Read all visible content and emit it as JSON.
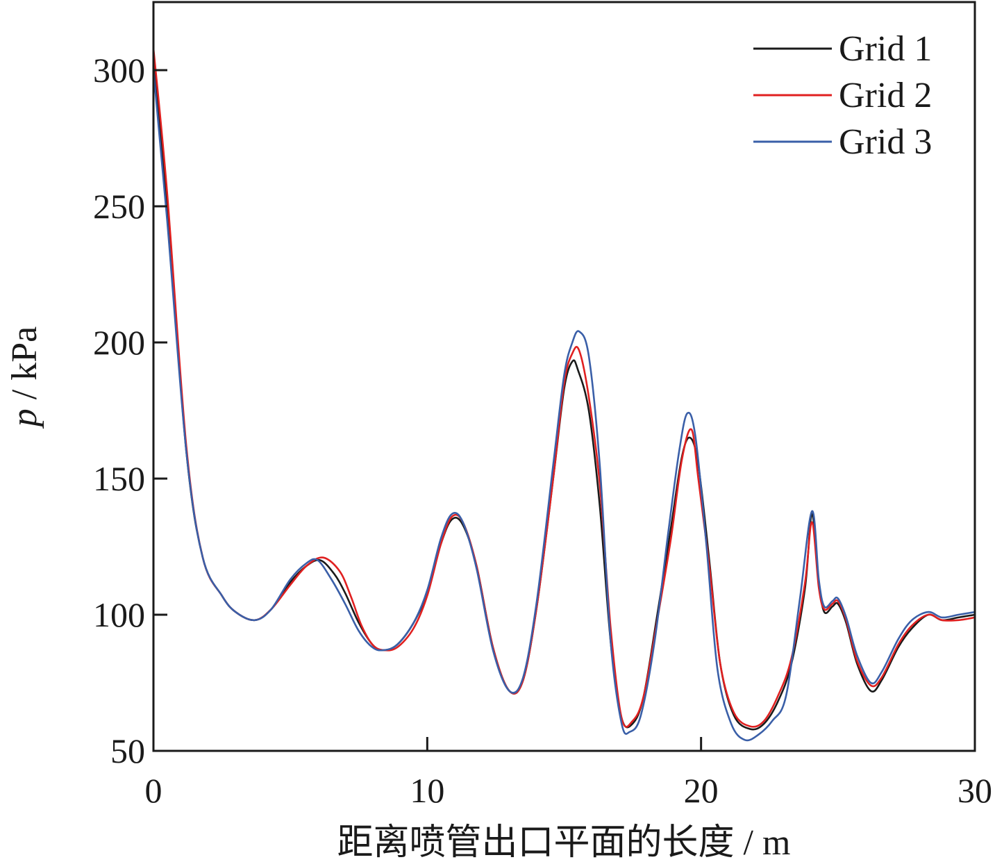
{
  "chart_data": {
    "type": "line",
    "xlabel": "距离喷管出口平面的长度 / m",
    "ylabel_var": "p",
    "ylabel_unit": " / kPa",
    "xlim": [
      0,
      30
    ],
    "ylim": [
      50,
      325
    ],
    "xticks": [
      0,
      10,
      20,
      30
    ],
    "yticks": [
      50,
      100,
      150,
      200,
      250,
      300
    ],
    "grid": false,
    "legend_position": "top-right",
    "series": [
      {
        "name": "Grid 1",
        "color": "#1a1a1a",
        "x": [
          0,
          0.5,
          1.2,
          1.8,
          2.5,
          3.0,
          3.7,
          4.3,
          5.0,
          5.6,
          6.1,
          6.6,
          7.0,
          7.5,
          8.0,
          8.4,
          8.9,
          9.5,
          10.0,
          10.5,
          10.9,
          11.3,
          11.8,
          12.4,
          13.0,
          13.5,
          14.0,
          14.6,
          15.0,
          15.3,
          15.5,
          15.9,
          16.3,
          16.7,
          17.1,
          17.5,
          17.9,
          18.4,
          18.9,
          19.3,
          19.6,
          19.9,
          20.3,
          20.7,
          21.2,
          21.8,
          22.3,
          22.8,
          23.3,
          23.8,
          24.05,
          24.3,
          24.5,
          24.8,
          25.0,
          25.3,
          25.7,
          26.2,
          26.6,
          27.2,
          27.7,
          28.3,
          28.8,
          29.4,
          30.0
        ],
        "y": [
          305,
          250,
          160,
          121,
          107,
          101,
          98,
          102,
          112,
          118,
          120,
          115,
          108,
          97,
          89,
          87,
          89,
          97,
          108,
          126,
          135,
          133,
          118,
          88,
          72,
          76,
          103,
          150,
          183,
          193,
          190,
          175,
          140,
          90,
          62,
          60,
          70,
          100,
          132,
          158,
          165,
          155,
          120,
          82,
          63,
          58,
          60,
          68,
          82,
          110,
          137,
          112,
          101,
          103,
          104,
          97,
          82,
          72,
          76,
          88,
          95,
          100,
          98,
          99,
          100
        ]
      },
      {
        "name": "Grid 2",
        "color": "#e02020",
        "x": [
          0,
          0.5,
          1.2,
          1.8,
          2.5,
          3.0,
          3.7,
          4.3,
          5.0,
          5.6,
          6.2,
          6.8,
          7.2,
          7.6,
          8.0,
          8.4,
          8.9,
          9.5,
          10.0,
          10.5,
          10.9,
          11.3,
          11.8,
          12.4,
          13.0,
          13.5,
          14.0,
          14.6,
          15.0,
          15.3,
          15.55,
          15.9,
          16.3,
          16.7,
          17.1,
          17.5,
          17.9,
          18.4,
          18.9,
          19.3,
          19.65,
          19.9,
          20.3,
          20.7,
          21.2,
          21.8,
          22.3,
          22.8,
          23.3,
          23.8,
          24.05,
          24.3,
          24.5,
          24.8,
          25.0,
          25.3,
          25.7,
          26.2,
          26.6,
          27.2,
          27.7,
          28.3,
          28.8,
          29.4,
          30.0
        ],
        "y": [
          308,
          255,
          162,
          121,
          107,
          101,
          98,
          102,
          111,
          118,
          121,
          116,
          107,
          96,
          89,
          87,
          88,
          95,
          107,
          126,
          136,
          134,
          118,
          88,
          72,
          76,
          103,
          150,
          185,
          196,
          197,
          180,
          148,
          95,
          62,
          61,
          70,
          98,
          128,
          157,
          168,
          150,
          118,
          82,
          64,
          59,
          61,
          70,
          84,
          112,
          134,
          110,
          102,
          104,
          105,
          98,
          83,
          74,
          77,
          89,
          96,
          100,
          98,
          98,
          99
        ]
      },
      {
        "name": "Grid 3",
        "color": "#3a5fa8",
        "x": [
          0,
          0.5,
          1.2,
          1.8,
          2.5,
          3.0,
          3.7,
          4.3,
          5.0,
          5.6,
          6.0,
          6.5,
          7.0,
          7.5,
          8.0,
          8.4,
          8.9,
          9.5,
          10.0,
          10.5,
          10.9,
          11.3,
          11.8,
          12.4,
          13.0,
          13.5,
          14.0,
          14.6,
          15.0,
          15.3,
          15.55,
          15.9,
          16.3,
          16.7,
          17.1,
          17.4,
          17.8,
          18.3,
          18.8,
          19.2,
          19.5,
          19.8,
          20.2,
          20.6,
          21.1,
          21.6,
          22.1,
          22.6,
          23.1,
          23.6,
          24.05,
          24.3,
          24.5,
          24.8,
          25.0,
          25.3,
          25.7,
          26.2,
          26.6,
          27.2,
          27.7,
          28.3,
          28.8,
          29.4,
          30.0
        ],
        "y": [
          300,
          245,
          160,
          121,
          107,
          101,
          98,
          102,
          113,
          119,
          120,
          113,
          104,
          94,
          88,
          87,
          89,
          97,
          109,
          128,
          137,
          134,
          117,
          87,
          72,
          77,
          105,
          155,
          188,
          200,
          204,
          195,
          155,
          90,
          60,
          57,
          63,
          90,
          130,
          160,
          174,
          165,
          125,
          80,
          60,
          54,
          56,
          61,
          70,
          105,
          138,
          113,
          103,
          105,
          106,
          99,
          85,
          75,
          79,
          91,
          98,
          101,
          99,
          100,
          101
        ]
      }
    ]
  }
}
